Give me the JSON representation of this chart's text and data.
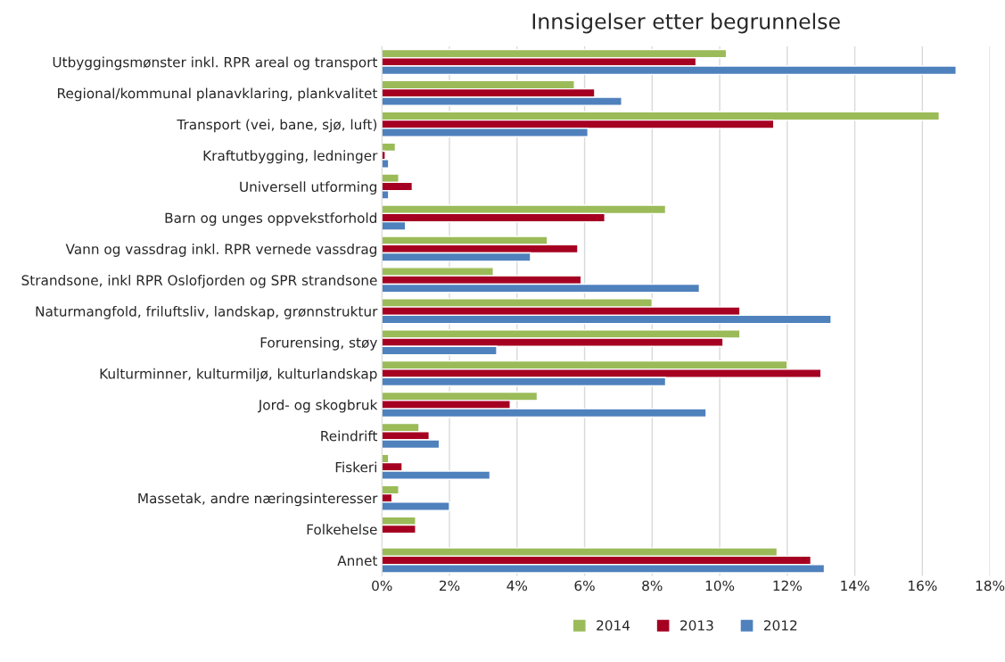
{
  "chart_data": {
    "type": "bar",
    "orientation": "horizontal",
    "title": "Innsigelser etter begrunnelse",
    "categories": [
      "Utbyggingsmønster inkl. RPR areal og transport",
      "Regional/kommunal planavklaring, plankvalitet",
      "Transport (vei, bane, sjø, luft)",
      "Kraftutbygging, ledninger",
      "Universell utforming",
      "Barn og unges oppvekstforhold",
      "Vann og vassdrag inkl. RPR vernede vassdrag",
      "Strandsone, inkl RPR Oslofjorden og SPR strandsone",
      "Naturmangfold, friluftsliv, landskap, grønnstruktur",
      "Forurensing, støy",
      "Kulturminner, kulturmiljø, kulturlandskap",
      "Jord- og skogbruk",
      "Reindrift",
      "Fiskeri",
      "Massetak, andre næringsinteresser",
      "Folkehelse",
      "Annet"
    ],
    "series": [
      {
        "name": "2014",
        "color": "#9bbb59",
        "values": [
          10.2,
          5.7,
          16.5,
          0.4,
          0.5,
          8.4,
          4.9,
          3.3,
          8.0,
          10.6,
          12.0,
          4.6,
          1.1,
          0.2,
          0.5,
          1.0,
          11.7
        ]
      },
      {
        "name": "2013",
        "color": "#a50021",
        "values": [
          9.3,
          6.3,
          11.6,
          0.1,
          0.9,
          6.6,
          5.8,
          5.9,
          10.6,
          10.1,
          13.0,
          3.8,
          1.4,
          0.6,
          0.3,
          1.0,
          12.7
        ]
      },
      {
        "name": "2012",
        "color": "#4f81bd",
        "values": [
          17.0,
          7.1,
          6.1,
          0.2,
          0.2,
          0.7,
          4.4,
          9.4,
          13.3,
          3.4,
          8.4,
          9.6,
          1.7,
          3.2,
          2.0,
          null,
          13.1
        ]
      }
    ],
    "xlim": [
      0,
      18
    ],
    "xticks": [
      {
        "value": 0,
        "label": "0%"
      },
      {
        "value": 2,
        "label": "2%"
      },
      {
        "value": 4,
        "label": "4%"
      },
      {
        "value": 6,
        "label": "6%"
      },
      {
        "value": 8,
        "label": "8%"
      },
      {
        "value": 10,
        "label": "10%"
      },
      {
        "value": 12,
        "label": "12%"
      },
      {
        "value": 14,
        "label": "14%"
      },
      {
        "value": 16,
        "label": "16%"
      },
      {
        "value": 18,
        "label": "18%"
      }
    ],
    "grid": "x",
    "legend": "bottom"
  }
}
